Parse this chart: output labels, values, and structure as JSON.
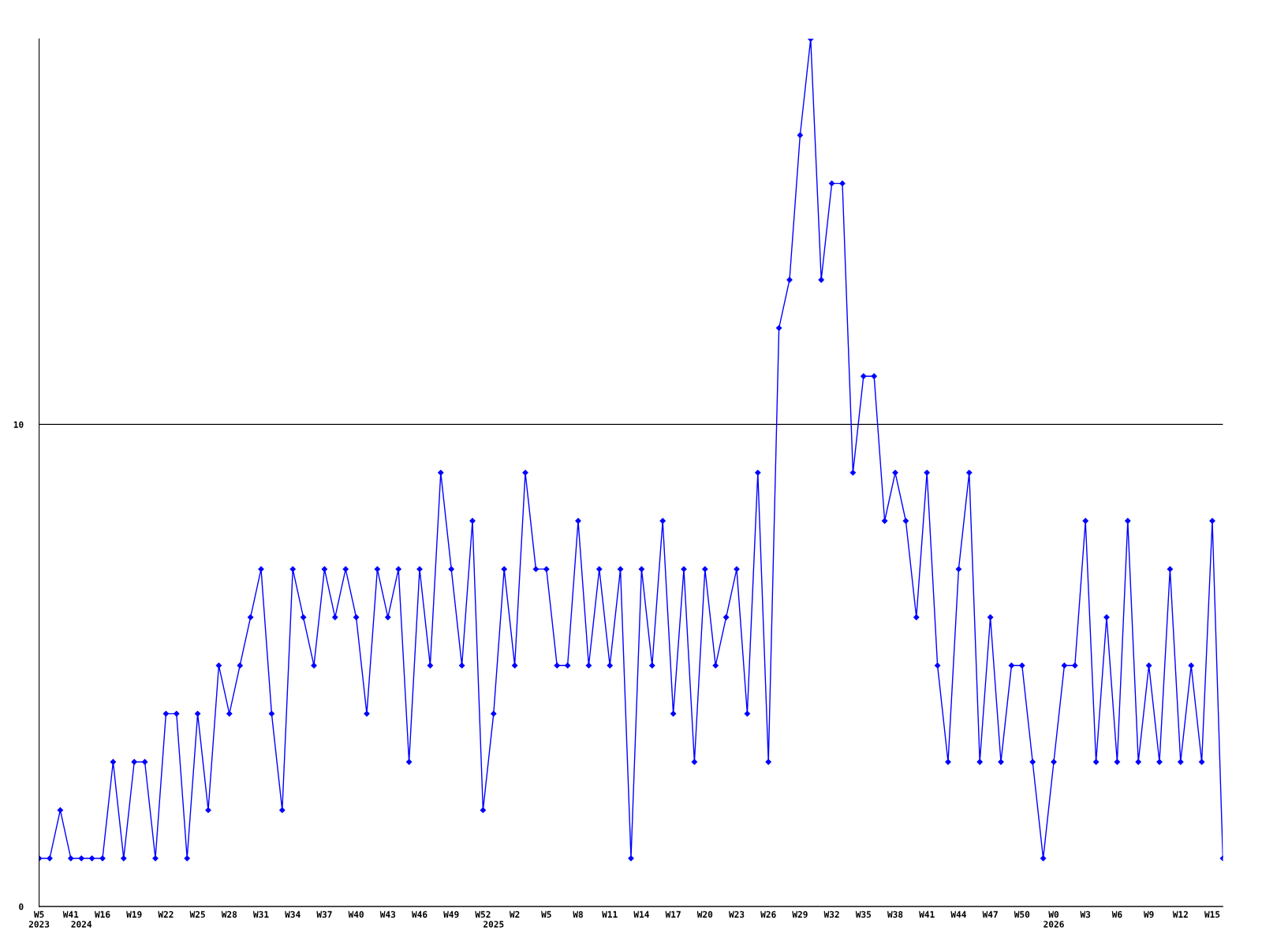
{
  "chart_data": {
    "type": "line",
    "categories": [
      "W5\n2023",
      null,
      null,
      "W41",
      "\n2024",
      null,
      "W16",
      null,
      null,
      "W19",
      null,
      null,
      "W22",
      null,
      null,
      "W25",
      null,
      null,
      "W28",
      null,
      null,
      "W31",
      null,
      null,
      "W34",
      null,
      null,
      "W37",
      null,
      null,
      "W40",
      null,
      null,
      "W43",
      null,
      null,
      "W46",
      null,
      null,
      "W49",
      null,
      null,
      "W52",
      "\n2025",
      null,
      "W2",
      null,
      null,
      "W5",
      null,
      null,
      "W8",
      null,
      null,
      "W11",
      null,
      null,
      "W14",
      null,
      null,
      "W17",
      null,
      null,
      "W20",
      null,
      null,
      "W23",
      null,
      null,
      "W26",
      null,
      null,
      "W29",
      null,
      null,
      "W32",
      null,
      null,
      "W35",
      null,
      null,
      "W38",
      null,
      null,
      "W41",
      null,
      null,
      "W44",
      null,
      null,
      "W47",
      null,
      null,
      "W50",
      null,
      null,
      "W0\n2026",
      null,
      null,
      "W3",
      null,
      null,
      "W6",
      null,
      null,
      "W9",
      null,
      null,
      "W12",
      null,
      null,
      "W15",
      null
    ],
    "series": [
      {
        "color": "#0000ff",
        "values": [
          1,
          1,
          2,
          1,
          1,
          1,
          1,
          3,
          1,
          3,
          3,
          1,
          4,
          4,
          1,
          4,
          2,
          5,
          4,
          5,
          6,
          7,
          4,
          2,
          7,
          6,
          5,
          7,
          6,
          7,
          6,
          4,
          7,
          6,
          7,
          3,
          7,
          5,
          9,
          7,
          5,
          8,
          2,
          4,
          7,
          5,
          9,
          7,
          7,
          5,
          5,
          8,
          5,
          7,
          5,
          7,
          1,
          7,
          5,
          8,
          4,
          7,
          3,
          7,
          5,
          6,
          7,
          4,
          9,
          3,
          12,
          13,
          16,
          18,
          13,
          15,
          15,
          9,
          11,
          11,
          8,
          9,
          8,
          6,
          9,
          5,
          3,
          7,
          9,
          3,
          6,
          3,
          5,
          5,
          3,
          1,
          3,
          5,
          5,
          8,
          3,
          6,
          3,
          8,
          3,
          5,
          3,
          7,
          3,
          5,
          3,
          8,
          1
        ]
      }
    ],
    "ylim": [
      0,
      18
    ],
    "yticks": [
      0,
      10
    ],
    "grid": "y",
    "marker": "diamond",
    "line_style": "solid"
  }
}
